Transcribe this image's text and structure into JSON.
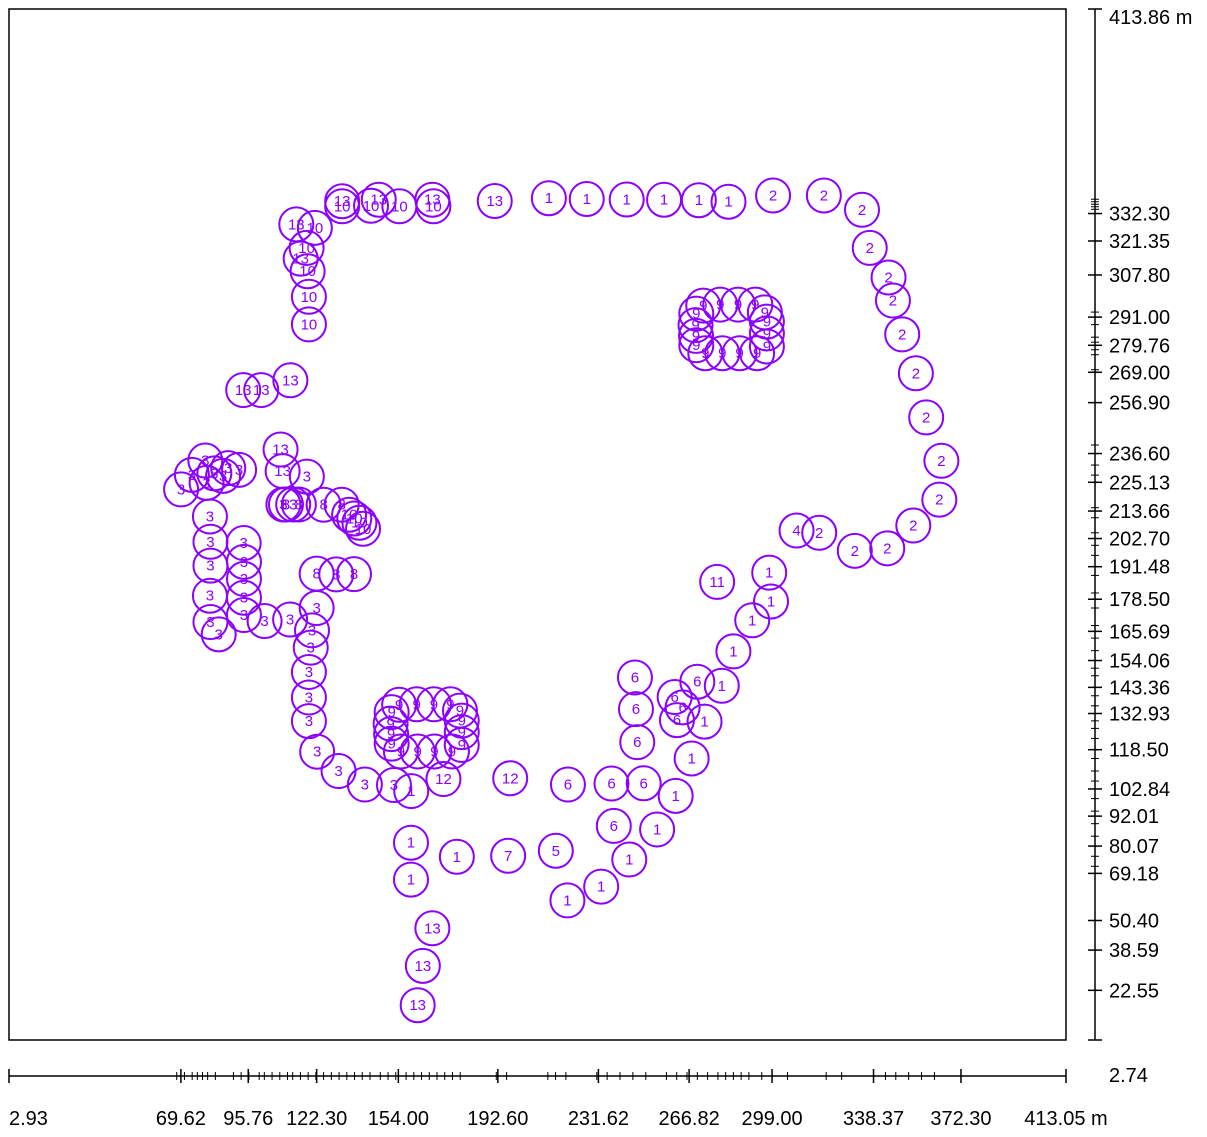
{
  "chart_data": {
    "type": "scatter",
    "xlim": [
      2.93,
      413.05
    ],
    "ylim": [
      2.74,
      413.86
    ],
    "x_unit": "m",
    "y_unit": "m",
    "x_tick_labels": [
      2.93,
      69.62,
      95.76,
      122.3,
      154.0,
      192.6,
      231.62,
      266.82,
      299.0,
      338.37,
      372.3,
      413.05
    ],
    "x_tick_texts": [
      "2.93",
      "69.62",
      "95.76",
      "122.30",
      "154.00",
      "192.60",
      "231.62",
      "266.82",
      "299.00",
      "338.37",
      "372.30",
      "413.05 m"
    ],
    "x_minor_ticks": [
      68,
      71,
      74,
      76,
      78,
      80,
      83,
      90,
      93,
      96,
      100,
      102,
      105,
      108,
      111,
      113,
      116,
      119,
      122,
      125,
      128,
      131,
      134,
      137,
      140,
      143,
      147,
      150,
      153,
      157,
      160,
      163,
      166,
      169,
      172,
      175,
      178,
      192,
      196,
      212,
      215,
      219,
      231,
      235,
      240,
      245,
      250,
      258,
      262,
      266,
      270,
      274,
      278,
      281,
      284,
      287,
      290,
      295,
      305,
      320,
      326,
      343,
      347,
      352,
      357,
      362
    ],
    "y_tick_labels": [
      2.74,
      22.55,
      38.59,
      50.4,
      69.18,
      80.07,
      92.01,
      102.84,
      118.5,
      132.93,
      143.36,
      154.06,
      165.69,
      178.5,
      191.48,
      202.7,
      213.66,
      225.13,
      236.6,
      256.9,
      269.0,
      279.76,
      291.0,
      307.8,
      321.35,
      332.3,
      413.86
    ],
    "y_tick_texts": [
      "2.74",
      "22.55",
      "38.59",
      "50.40",
      "69.18",
      "80.07",
      "92.01",
      "102.84",
      "118.50",
      "132.93",
      "143.36",
      "154.06",
      "165.69",
      "178.50",
      "191.48",
      "202.70",
      "213.66",
      "225.13",
      "236.60",
      "256.90",
      "269.00",
      "279.76",
      "291.00",
      "307.80",
      "321.35",
      "332.30",
      "413.86 m"
    ],
    "y_minor_ticks": [
      338,
      337,
      336,
      335,
      334,
      293,
      288,
      283,
      281,
      278,
      276,
      270,
      240,
      232,
      228,
      215,
      211,
      205,
      200,
      196,
      188,
      181,
      175,
      168,
      163,
      158,
      151,
      148,
      140,
      136,
      130,
      127,
      123,
      115,
      110,
      106,
      99,
      94,
      89,
      84,
      76,
      72
    ],
    "marker_color": "#8b00ff",
    "points": [
      {
        "x": 212.4,
        "y": 338.4,
        "label": "1"
      },
      {
        "x": 227.1,
        "y": 338.1,
        "label": "1"
      },
      {
        "x": 242.6,
        "y": 337.9,
        "label": "1"
      },
      {
        "x": 257.1,
        "y": 337.8,
        "label": "1"
      },
      {
        "x": 270.6,
        "y": 337.6,
        "label": "1"
      },
      {
        "x": 282.1,
        "y": 337.0,
        "label": "1"
      },
      {
        "x": 299.4,
        "y": 339.5,
        "label": "2"
      },
      {
        "x": 319.1,
        "y": 339.5,
        "label": "2"
      },
      {
        "x": 333.9,
        "y": 333.8,
        "label": "2"
      },
      {
        "x": 336.9,
        "y": 318.6,
        "label": "2"
      },
      {
        "x": 344.2,
        "y": 306.8,
        "label": "2"
      },
      {
        "x": 345.9,
        "y": 297.6,
        "label": "2"
      },
      {
        "x": 349.5,
        "y": 284.1,
        "label": "2"
      },
      {
        "x": 354.8,
        "y": 268.6,
        "label": "2"
      },
      {
        "x": 358.8,
        "y": 251.0,
        "label": "2"
      },
      {
        "x": 364.7,
        "y": 233.7,
        "label": "2"
      },
      {
        "x": 363.9,
        "y": 218.2,
        "label": "2"
      },
      {
        "x": 353.8,
        "y": 207.9,
        "label": "2"
      },
      {
        "x": 343.7,
        "y": 198.8,
        "label": "2"
      },
      {
        "x": 331.1,
        "y": 197.8,
        "label": "2"
      },
      {
        "x": 317.3,
        "y": 205.0,
        "label": "2"
      },
      {
        "x": 308.5,
        "y": 205.9,
        "label": "4"
      },
      {
        "x": 297.9,
        "y": 189.1,
        "label": "1"
      },
      {
        "x": 298.6,
        "y": 177.6,
        "label": "1"
      },
      {
        "x": 291.3,
        "y": 170.1,
        "label": "1"
      },
      {
        "x": 284.0,
        "y": 157.7,
        "label": "1"
      },
      {
        "x": 279.5,
        "y": 144.0,
        "label": "1"
      },
      {
        "x": 272.8,
        "y": 129.7,
        "label": "1"
      },
      {
        "x": 267.8,
        "y": 115.0,
        "label": "1"
      },
      {
        "x": 261.6,
        "y": 100.1,
        "label": "1"
      },
      {
        "x": 254.4,
        "y": 86.7,
        "label": "1"
      },
      {
        "x": 243.6,
        "y": 74.7,
        "label": "1"
      },
      {
        "x": 232.7,
        "y": 63.9,
        "label": "1"
      },
      {
        "x": 219.6,
        "y": 58.4,
        "label": "1"
      },
      {
        "x": 245.8,
        "y": 147.3,
        "label": "6"
      },
      {
        "x": 246.2,
        "y": 134.7,
        "label": "6"
      },
      {
        "x": 246.7,
        "y": 121.5,
        "label": "6"
      },
      {
        "x": 249.2,
        "y": 105.1,
        "label": "6"
      },
      {
        "x": 236.7,
        "y": 105.0,
        "label": "6"
      },
      {
        "x": 219.8,
        "y": 104.6,
        "label": "6"
      },
      {
        "x": 237.6,
        "y": 88.1,
        "label": "6"
      },
      {
        "x": 270.0,
        "y": 145.6,
        "label": "6"
      },
      {
        "x": 261.2,
        "y": 139.5,
        "label": "6"
      },
      {
        "x": 264.3,
        "y": 135.4,
        "label": "6"
      },
      {
        "x": 262.1,
        "y": 130.3,
        "label": "6"
      },
      {
        "x": 277.7,
        "y": 185.4,
        "label": "11"
      },
      {
        "x": 215.1,
        "y": 78.2,
        "label": "5"
      },
      {
        "x": 196.6,
        "y": 76.2,
        "label": "7"
      },
      {
        "x": 176.7,
        "y": 75.8,
        "label": "1"
      },
      {
        "x": 197.4,
        "y": 107.1,
        "label": "12"
      },
      {
        "x": 171.5,
        "y": 106.8,
        "label": "12"
      },
      {
        "x": 159.0,
        "y": 102.0,
        "label": "1"
      },
      {
        "x": 158.9,
        "y": 81.4,
        "label": "1"
      },
      {
        "x": 158.9,
        "y": 66.7,
        "label": "1"
      },
      {
        "x": 167.2,
        "y": 47.3,
        "label": "13"
      },
      {
        "x": 163.5,
        "y": 32.3,
        "label": "13"
      },
      {
        "x": 161.5,
        "y": 16.6,
        "label": "13"
      },
      {
        "x": 118.5,
        "y": 227.4,
        "label": "3"
      },
      {
        "x": 109.4,
        "y": 216.3,
        "label": "3"
      },
      {
        "x": 113.2,
        "y": 216.3,
        "label": "3"
      },
      {
        "x": 79.6,
        "y": 224.9,
        "label": "3"
      },
      {
        "x": 80.9,
        "y": 211.5,
        "label": "3"
      },
      {
        "x": 81.1,
        "y": 201.4,
        "label": "3"
      },
      {
        "x": 81.1,
        "y": 191.9,
        "label": "3"
      },
      {
        "x": 80.9,
        "y": 179.9,
        "label": "3"
      },
      {
        "x": 81.1,
        "y": 169.4,
        "label": "3"
      },
      {
        "x": 84.3,
        "y": 164.5,
        "label": "3"
      },
      {
        "x": 94.0,
        "y": 200.9,
        "label": "3"
      },
      {
        "x": 94.1,
        "y": 193.4,
        "label": "3"
      },
      {
        "x": 94.1,
        "y": 186.6,
        "label": "3"
      },
      {
        "x": 94.1,
        "y": 179.1,
        "label": "3"
      },
      {
        "x": 94.1,
        "y": 172.2,
        "label": "3"
      },
      {
        "x": 102.1,
        "y": 169.8,
        "label": "3"
      },
      {
        "x": 112.0,
        "y": 170.4,
        "label": "3"
      },
      {
        "x": 122.3,
        "y": 175.0,
        "label": "3"
      },
      {
        "x": 120.5,
        "y": 166.1,
        "label": "3"
      },
      {
        "x": 120.0,
        "y": 159.2,
        "label": "3"
      },
      {
        "x": 119.3,
        "y": 149.5,
        "label": "3"
      },
      {
        "x": 119.3,
        "y": 139.3,
        "label": "3"
      },
      {
        "x": 119.3,
        "y": 129.9,
        "label": "3"
      },
      {
        "x": 122.5,
        "y": 117.7,
        "label": "3"
      },
      {
        "x": 130.8,
        "y": 110.0,
        "label": "3"
      },
      {
        "x": 141.0,
        "y": 104.6,
        "label": "3"
      },
      {
        "x": 152.3,
        "y": 104.4,
        "label": "3"
      },
      {
        "x": 69.7,
        "y": 222.3,
        "label": "3"
      },
      {
        "x": 73.9,
        "y": 228.1,
        "label": "3"
      },
      {
        "x": 79.1,
        "y": 233.8,
        "label": "3"
      },
      {
        "x": 82.6,
        "y": 228.7,
        "label": "3"
      },
      {
        "x": 86.0,
        "y": 227.7,
        "label": "3"
      },
      {
        "x": 88.0,
        "y": 230.8,
        "label": "3"
      },
      {
        "x": 92.2,
        "y": 230.1,
        "label": "3"
      },
      {
        "x": 108.3,
        "y": 238.2,
        "label": "13"
      },
      {
        "x": 109.1,
        "y": 229.6,
        "label": "13"
      },
      {
        "x": 100.8,
        "y": 261.9,
        "label": "13"
      },
      {
        "x": 93.8,
        "y": 261.9,
        "label": "13"
      },
      {
        "x": 112.1,
        "y": 265.8,
        "label": "13"
      },
      {
        "x": 119.3,
        "y": 288.1,
        "label": "10"
      },
      {
        "x": 119.3,
        "y": 299.1,
        "label": "10"
      },
      {
        "x": 118.8,
        "y": 309.3,
        "label": "10"
      },
      {
        "x": 118.4,
        "y": 318.6,
        "label": "10"
      },
      {
        "x": 116.1,
        "y": 314.3,
        "label": "13"
      },
      {
        "x": 121.6,
        "y": 326.6,
        "label": "10"
      },
      {
        "x": 114.4,
        "y": 328.0,
        "label": "13"
      },
      {
        "x": 132.2,
        "y": 335.2,
        "label": "10"
      },
      {
        "x": 143.4,
        "y": 335.4,
        "label": "10"
      },
      {
        "x": 154.4,
        "y": 335.2,
        "label": "10"
      },
      {
        "x": 167.6,
        "y": 335.2,
        "label": "10"
      },
      {
        "x": 132.2,
        "y": 337.2,
        "label": "13"
      },
      {
        "x": 146.4,
        "y": 337.8,
        "label": "13"
      },
      {
        "x": 167.2,
        "y": 337.8,
        "label": "13"
      },
      {
        "x": 191.4,
        "y": 337.3,
        "label": "13"
      },
      {
        "x": 110.4,
        "y": 216.3,
        "label": "8"
      },
      {
        "x": 115.4,
        "y": 216.3,
        "label": "8"
      },
      {
        "x": 125.0,
        "y": 216.2,
        "label": "8"
      },
      {
        "x": 132.0,
        "y": 216.2,
        "label": "8"
      },
      {
        "x": 134.9,
        "y": 212.2,
        "label": "10"
      },
      {
        "x": 136.9,
        "y": 210.7,
        "label": "10"
      },
      {
        "x": 138.9,
        "y": 209.0,
        "label": "10"
      },
      {
        "x": 140.3,
        "y": 206.6,
        "label": "10"
      },
      {
        "x": 122.3,
        "y": 188.7,
        "label": "8"
      },
      {
        "x": 129.9,
        "y": 188.4,
        "label": "8"
      },
      {
        "x": 136.8,
        "y": 188.5,
        "label": "8"
      },
      {
        "x": 154.3,
        "y": 136.4,
        "label": "9"
      },
      {
        "x": 161.1,
        "y": 136.6,
        "label": "9"
      },
      {
        "x": 167.8,
        "y": 136.6,
        "label": "9"
      },
      {
        "x": 174.2,
        "y": 136.6,
        "label": "9"
      },
      {
        "x": 177.9,
        "y": 134.1,
        "label": "9"
      },
      {
        "x": 151.4,
        "y": 133.5,
        "label": "9"
      },
      {
        "x": 151.0,
        "y": 128.9,
        "label": "9"
      },
      {
        "x": 151.2,
        "y": 124.7,
        "label": "9"
      },
      {
        "x": 151.4,
        "y": 120.9,
        "label": "9"
      },
      {
        "x": 155.0,
        "y": 117.8,
        "label": "9"
      },
      {
        "x": 161.5,
        "y": 117.8,
        "label": "9"
      },
      {
        "x": 168.0,
        "y": 117.8,
        "label": "9"
      },
      {
        "x": 174.8,
        "y": 117.8,
        "label": "9"
      },
      {
        "x": 178.6,
        "y": 120.4,
        "label": "9"
      },
      {
        "x": 178.6,
        "y": 125.5,
        "label": "9"
      },
      {
        "x": 178.6,
        "y": 130.1,
        "label": "9"
      },
      {
        "x": 272.3,
        "y": 295.6,
        "label": "9"
      },
      {
        "x": 278.9,
        "y": 296.0,
        "label": "9"
      },
      {
        "x": 285.8,
        "y": 296.0,
        "label": "9"
      },
      {
        "x": 292.5,
        "y": 296.0,
        "label": "9"
      },
      {
        "x": 296.2,
        "y": 292.9,
        "label": "9"
      },
      {
        "x": 269.6,
        "y": 292.4,
        "label": "9"
      },
      {
        "x": 269.3,
        "y": 287.8,
        "label": "9"
      },
      {
        "x": 269.5,
        "y": 283.5,
        "label": "9"
      },
      {
        "x": 269.6,
        "y": 279.8,
        "label": "9"
      },
      {
        "x": 273.1,
        "y": 276.6,
        "label": "9"
      },
      {
        "x": 279.7,
        "y": 276.6,
        "label": "9"
      },
      {
        "x": 286.4,
        "y": 276.6,
        "label": "9"
      },
      {
        "x": 293.2,
        "y": 276.6,
        "label": "9"
      },
      {
        "x": 297.0,
        "y": 279.3,
        "label": "9"
      },
      {
        "x": 297.0,
        "y": 284.5,
        "label": "9"
      },
      {
        "x": 297.0,
        "y": 289.2,
        "label": "9"
      }
    ]
  }
}
